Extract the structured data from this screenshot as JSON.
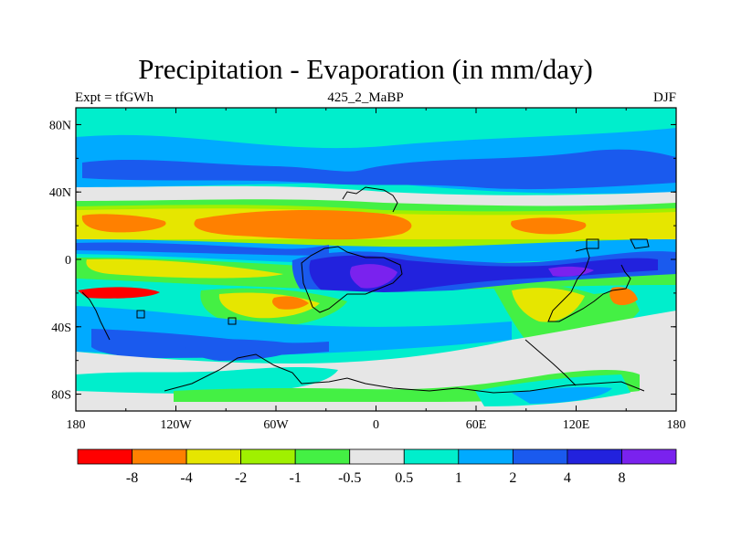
{
  "title": "Precipitation - Evaporation (in mm/day)",
  "subtitle_left": "Expt = tfGWh",
  "subtitle_center": "425_2_MaBP",
  "subtitle_right": "DJF",
  "lat_ticks": [
    {
      "label": "80N",
      "value": 80
    },
    {
      "label": "40N",
      "value": 40
    },
    {
      "label": "0",
      "value": 0
    },
    {
      "label": "40S",
      "value": -40
    },
    {
      "label": "80S",
      "value": -80
    }
  ],
  "lon_ticks": [
    {
      "label": "180",
      "value": -180
    },
    {
      "label": "120W",
      "value": -120
    },
    {
      "label": "60W",
      "value": -60
    },
    {
      "label": "0",
      "value": 0
    },
    {
      "label": "60E",
      "value": 60
    },
    {
      "label": "120E",
      "value": 120
    },
    {
      "label": "180",
      "value": 180
    }
  ],
  "lat_range": [
    -90,
    90
  ],
  "lon_range": [
    -180,
    180
  ],
  "colorbar": {
    "colors": [
      "#ff0000",
      "#ff8000",
      "#e6e600",
      "#a0f000",
      "#44f044",
      "#e6e6e6",
      "#00eecc",
      "#00aaff",
      "#1a5aee",
      "#2222dd",
      "#7a22ee"
    ],
    "labels": [
      "-8",
      "-4",
      "-2",
      "-1",
      "-0.5",
      "0.5",
      "1",
      "2",
      "4",
      "8"
    ]
  },
  "palette": {
    "orange": "#ff8000",
    "yellow": "#e6e600",
    "yellowgreen": "#a0f000",
    "green": "#44f044",
    "gray": "#e6e6e6",
    "cyan": "#00eecc",
    "skyblue": "#00aaff",
    "blue": "#1a5aee",
    "darkblue": "#2222dd",
    "purple": "#7a22ee"
  }
}
